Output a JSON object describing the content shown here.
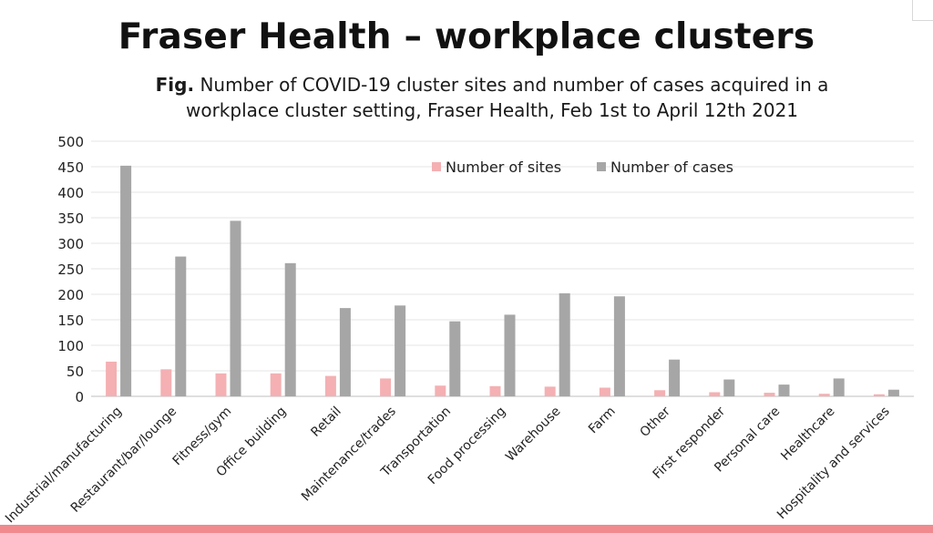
{
  "title": "Fraser Health – workplace clusters",
  "subtitle": {
    "prefix": "Fig.",
    "text": "Number of COVID-19 cluster sites and number of cases acquired in a workplace cluster setting, Fraser Health, Feb 1st to April 12th 2021"
  },
  "chart_data": {
    "type": "bar",
    "categories": [
      "Industrial/manufacturing",
      "Restaurant/bar/lounge",
      "Fitness/gym",
      "Office building",
      "Retail",
      "Maintenance/trades",
      "Transportation",
      "Food processing",
      "Warehouse",
      "Farm",
      "Other",
      "First responder",
      "Personal care",
      "Healthcare",
      "Hospitality and services"
    ],
    "series": [
      {
        "name": "Number of sites",
        "color": "#f4b0b3",
        "values": [
          68,
          53,
          45,
          45,
          40,
          35,
          21,
          20,
          19,
          17,
          12,
          8,
          7,
          5,
          4
        ]
      },
      {
        "name": "Number of cases",
        "color": "#a6a6a6",
        "values": [
          452,
          274,
          344,
          261,
          173,
          178,
          147,
          160,
          202,
          196,
          72,
          33,
          23,
          35,
          13
        ]
      }
    ],
    "yticks": [
      0,
      50,
      100,
      150,
      200,
      250,
      300,
      350,
      400,
      450,
      500
    ],
    "ylim": [
      0,
      500
    ],
    "grid": true,
    "legend": "top-center"
  }
}
